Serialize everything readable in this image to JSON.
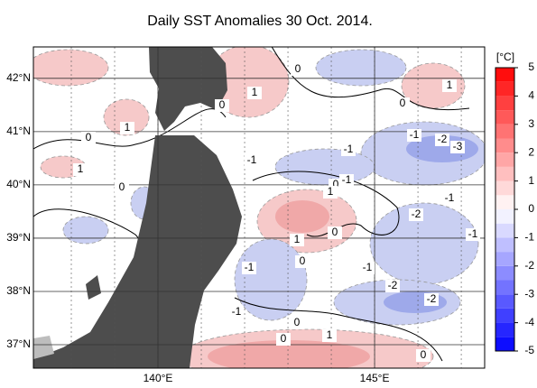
{
  "map": {
    "title": "Daily SST Anomalies 30 Oct. 2014.",
    "lat_range": [
      36.56,
      42.59
    ],
    "lon_range": [
      137.125,
      147.54
    ],
    "lat_ticks": [
      {
        "value": 42,
        "label": "42°N"
      },
      {
        "value": 41,
        "label": "41°N"
      },
      {
        "value": 40,
        "label": "40°N"
      },
      {
        "value": 39,
        "label": "39°N"
      },
      {
        "value": 38,
        "label": "38°N"
      },
      {
        "value": 37,
        "label": "37°N"
      }
    ],
    "lon_ticks": [
      {
        "value": 140,
        "label": "140°E"
      },
      {
        "value": 145,
        "label": "145°E"
      }
    ],
    "colorbar": {
      "unit": "[°C]",
      "range": [
        -5,
        5
      ],
      "ticks": [
        5,
        4,
        3,
        2,
        1,
        0,
        -1,
        -2,
        -3,
        -4,
        -5
      ]
    },
    "contour_labels": [
      "1",
      "0",
      "0",
      "1",
      "0",
      "1",
      "0",
      "-1",
      "-2",
      "-3",
      "-1",
      "-1",
      "1",
      "0",
      "0",
      "-1",
      "1",
      "-1",
      "-2",
      "1",
      "0",
      "-1",
      "-1",
      "0",
      "-1",
      "-2",
      "-2",
      "-1",
      "0",
      "1",
      "0",
      "0"
    ]
  }
}
